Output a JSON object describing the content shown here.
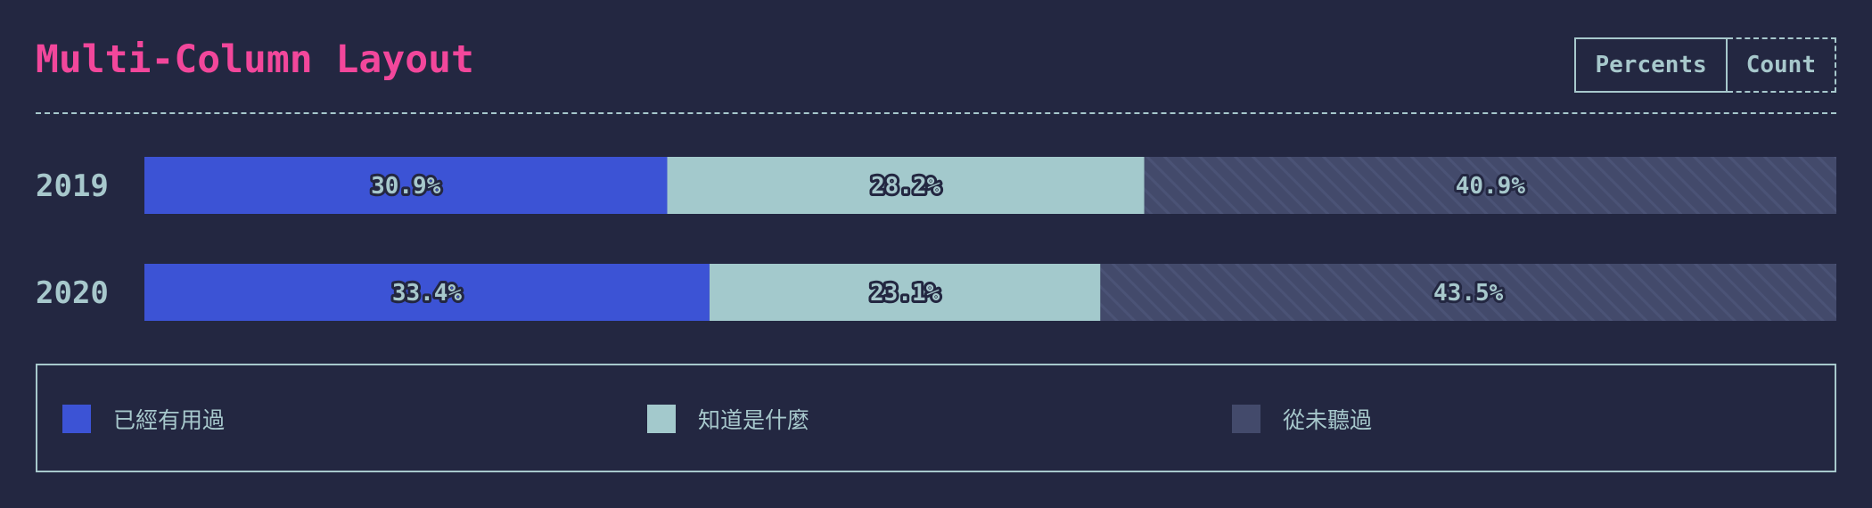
{
  "title": "Multi-Column Layout",
  "toggle": {
    "options": [
      "Percents",
      "Count"
    ],
    "selected": "Percents"
  },
  "colors": {
    "background": "#232741",
    "title": "#f2479b",
    "text": "#a7c8cc",
    "series": [
      "#3c53d5",
      "#a3c9cc",
      "#434a6b"
    ]
  },
  "chart_data": {
    "type": "bar",
    "orientation": "horizontal",
    "stacked": true,
    "normalized": true,
    "unit": "%",
    "categories": [
      "2019",
      "2020"
    ],
    "series": [
      {
        "name": "已經有用過",
        "values": [
          30.9,
          33.4
        ]
      },
      {
        "name": "知道是什麼",
        "values": [
          28.2,
          23.1
        ]
      },
      {
        "name": "從未聽過",
        "values": [
          40.9,
          43.5
        ]
      }
    ],
    "legend_position": "bottom",
    "grid": false
  }
}
